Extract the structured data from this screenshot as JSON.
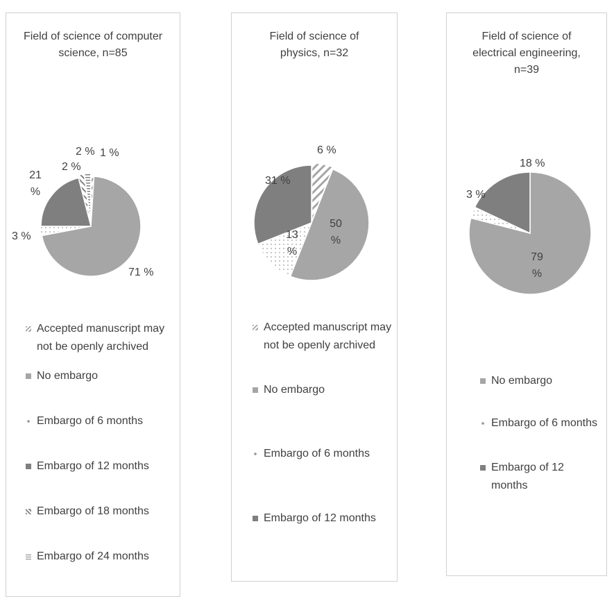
{
  "chart_data": [
    {
      "type": "pie",
      "title": "Field of science of computer science, n=85",
      "categories": [
        "Accepted manuscript may not be openly archived",
        "No embargo",
        "Embargo of 6 months",
        "Embargo of 12 months",
        "Embargo of 18 months",
        "Embargo of 24 months"
      ],
      "values": [
        1,
        71,
        3,
        21,
        2,
        2
      ],
      "labels": [
        "1 %",
        "71 %",
        "3 %",
        "21 %",
        "2 %",
        "2 %"
      ],
      "legend": "bottom"
    },
    {
      "type": "pie",
      "title": "Field of science of physics, n=32",
      "categories": [
        "Accepted manuscript may not be openly archived",
        "No embargo",
        "Embargo of 6 months",
        "Embargo of 12 months"
      ],
      "values": [
        6,
        50,
        13,
        31
      ],
      "labels": [
        "6 %",
        "50 %",
        "13 %",
        "31 %"
      ],
      "legend": "bottom"
    },
    {
      "type": "pie",
      "title": "Field of science of electrical engineering, n=39",
      "categories": [
        "No embargo",
        "Embargo of 6 months",
        "Embargo of 12 months"
      ],
      "values": [
        79,
        3,
        18
      ],
      "labels": [
        "79 %",
        "3 %",
        "18 %"
      ],
      "legend": "bottom"
    }
  ],
  "colors": {
    "no_embargo": "#a6a6a6",
    "embargo_12": "#7f7f7f",
    "border": "#d0d0d0"
  }
}
